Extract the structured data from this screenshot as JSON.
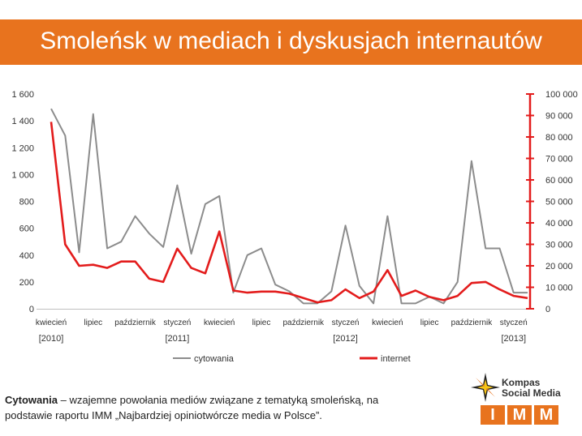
{
  "header": {
    "title": "Smoleńsk w mediach i dyskusjach internautów"
  },
  "chart_data": {
    "type": "line",
    "title": "",
    "x_tick_labels": [
      "kwiecień",
      "lipiec",
      "październik",
      "styczeń",
      "kwiecień",
      "lipiec",
      "październik",
      "styczeń",
      "kwiecień",
      "lipiec",
      "październik",
      "styczeń"
    ],
    "year_labels": [
      "[2010]",
      "[2011]",
      "[2012]",
      "[2013]"
    ],
    "y_left": {
      "ticks": [
        "0",
        "200",
        "400",
        "600",
        "800",
        "1 000",
        "1 200",
        "1 400",
        "1 600"
      ],
      "range": [
        0,
        1600
      ]
    },
    "y_right": {
      "ticks": [
        "0",
        "10 000",
        "20 000",
        "30 000",
        "40 000",
        "50 000",
        "60 000",
        "70 000",
        "80 000",
        "90 000",
        "100 000"
      ],
      "range": [
        0,
        100000
      ],
      "color": "#e31c1c"
    },
    "series": [
      {
        "name": "cytowania",
        "axis": "left",
        "color": "#8c8c8c",
        "values": [
          1490,
          1290,
          420,
          1450,
          450,
          500,
          690,
          560,
          460,
          920,
          410,
          780,
          840,
          120,
          400,
          450,
          180,
          130,
          40,
          40,
          130,
          620,
          170,
          40,
          690,
          40,
          40,
          90,
          40,
          200,
          1100,
          450,
          450,
          120,
          120
        ]
      },
      {
        "name": "internet",
        "axis": "right",
        "color": "#e31c1c",
        "values": [
          87000,
          30000,
          20000,
          20500,
          19000,
          22000,
          22000,
          14000,
          12500,
          28000,
          19000,
          16500,
          36000,
          8500,
          7500,
          8000,
          8000,
          7000,
          5000,
          3000,
          4000,
          9000,
          5000,
          8000,
          18000,
          6000,
          8500,
          5500,
          4000,
          6000,
          12000,
          12500,
          9000,
          6000,
          5000
        ]
      }
    ],
    "legend_position": "bottom",
    "grid": false
  },
  "footnote": {
    "term": "Cytowania",
    "text": " – wzajemne powołania mediów związane z tematyką smoleńską, na podstawie raportu IMM „Najbardziej opiniotwórcze media w Polsce”."
  },
  "logo": {
    "line1": "Kompas",
    "line2": "Social Media",
    "letters": [
      "I",
      "M",
      "M"
    ],
    "accent": "#e8731e"
  }
}
